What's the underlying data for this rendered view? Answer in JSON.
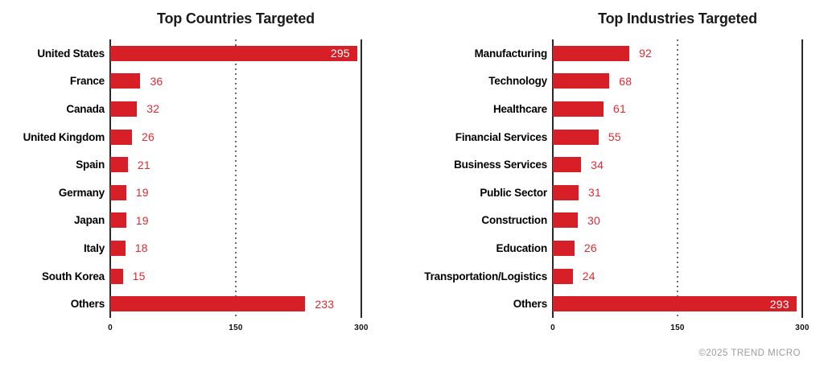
{
  "colors": {
    "background": "#ffffff",
    "bar": "#d71f27",
    "value_label": "#e02b31",
    "value_label_inside": "#ffffff",
    "axis_line": "#2a2a2a",
    "gridline_dotted": "#6a6a6a",
    "title": "#1a1a1a",
    "category_label": "#000000",
    "tick_label": "#111111",
    "footer": "#9b9b9b"
  },
  "footer": {
    "copyright": "©2025 TREND MICRO"
  },
  "chart_data": [
    {
      "type": "bar",
      "orientation": "horizontal",
      "title": "Top Countries Targeted",
      "categories": [
        "United States",
        "France",
        "Canada",
        "United Kingdom",
        "Spain",
        "Germany",
        "Japan",
        "Italy",
        "South Korea",
        "Others"
      ],
      "values": [
        295,
        36,
        32,
        26,
        21,
        19,
        19,
        18,
        15,
        233
      ],
      "xlabel": "",
      "ylabel": "",
      "xlim": [
        0,
        300
      ],
      "ticks": [
        0,
        150,
        300
      ],
      "grid": "dotted vertical line at 150, solid axis lines at 0 and 300",
      "legend": "none"
    },
    {
      "type": "bar",
      "orientation": "horizontal",
      "title": "Top Industries Targeted",
      "categories": [
        "Manufacturing",
        "Technology",
        "Healthcare",
        "Financial Services",
        "Business Services",
        "Public Sector",
        "Construction",
        "Education",
        "Transportation/Logistics",
        "Others"
      ],
      "values": [
        92,
        68,
        61,
        55,
        34,
        31,
        30,
        26,
        24,
        293
      ],
      "xlabel": "",
      "ylabel": "",
      "xlim": [
        0,
        300
      ],
      "ticks": [
        0,
        150,
        300
      ],
      "grid": "dotted vertical line at 150, solid axis lines at 0 and 300",
      "legend": "none"
    }
  ]
}
